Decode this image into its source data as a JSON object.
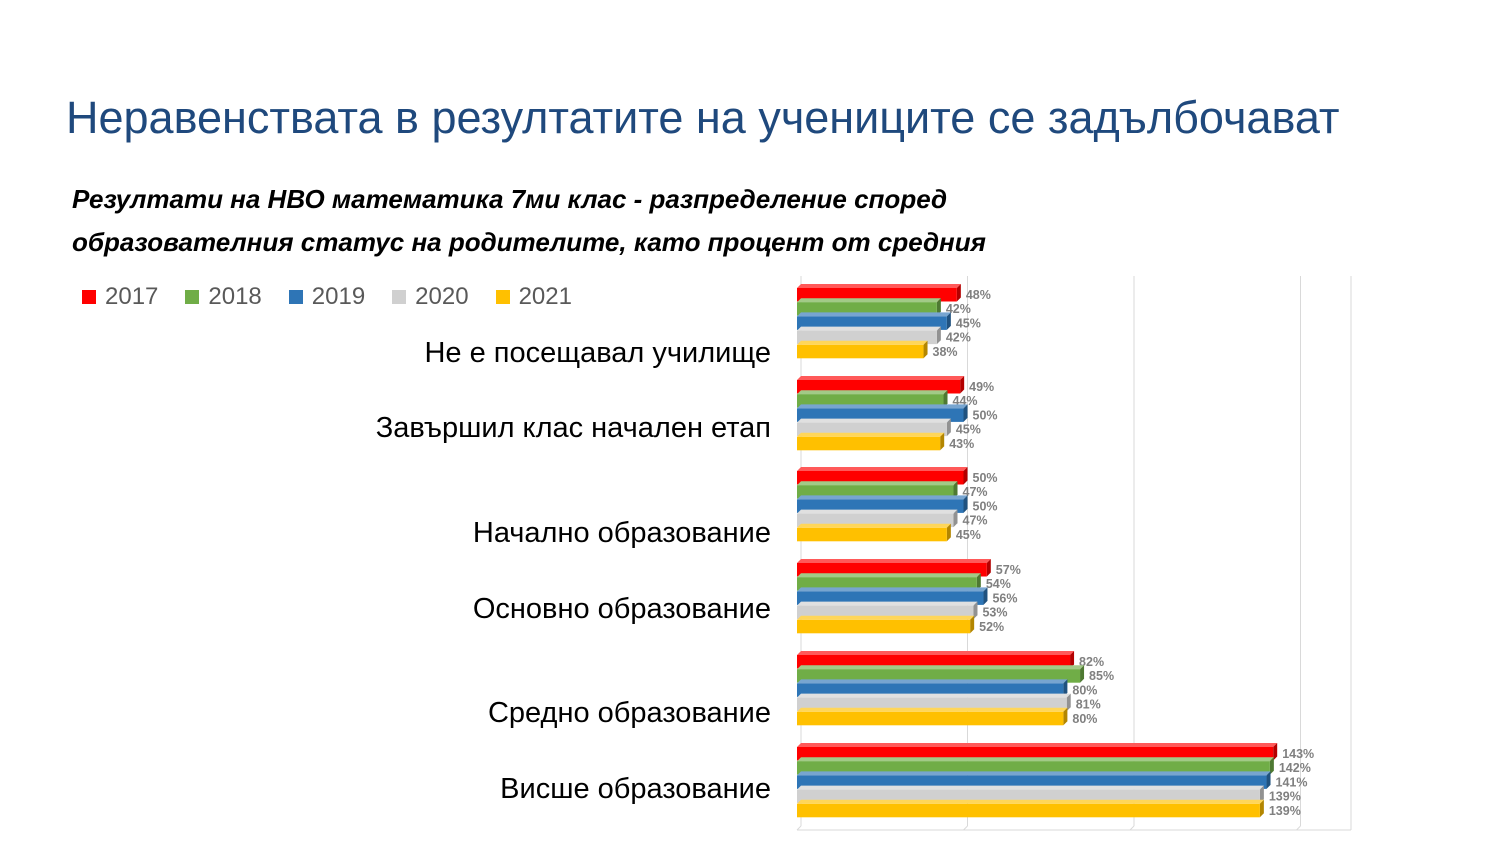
{
  "slide": {
    "title": "Неравенствата в резултатите на учениците се задълбочават"
  },
  "chart_data": {
    "type": "bar",
    "orientation": "horizontal",
    "title": "Резултати на НВО математика 7ми клас - разпределение според образователния статус на родителите, като процент от средния",
    "title_lines": [
      "Резултати на НВО математика 7ми клас - разпределение според",
      "образователния статус на родителите, като процент от средния"
    ],
    "categories": [
      "Не е посещавал училище",
      "Завършил клас начален етап",
      "Начално образование",
      "Основно образование",
      "Средно образование",
      "Висше образование"
    ],
    "series": [
      {
        "name": "2017",
        "color": "#ff0000",
        "values": [
          48,
          49,
          50,
          57,
          82,
          143
        ]
      },
      {
        "name": "2018",
        "color": "#70ad47",
        "values": [
          42,
          44,
          47,
          54,
          85,
          142
        ]
      },
      {
        "name": "2019",
        "color": "#2e75b6",
        "values": [
          45,
          50,
          50,
          56,
          80,
          141
        ]
      },
      {
        "name": "2020",
        "color": "#d0d0d0",
        "values": [
          42,
          45,
          47,
          53,
          81,
          139
        ]
      },
      {
        "name": "2021",
        "color": "#ffc000",
        "values": [
          38,
          43,
          45,
          52,
          80,
          139
        ]
      }
    ],
    "value_suffix": "%",
    "xlim": [
      0,
      160
    ],
    "grid": true,
    "legend_position": "top-left"
  }
}
